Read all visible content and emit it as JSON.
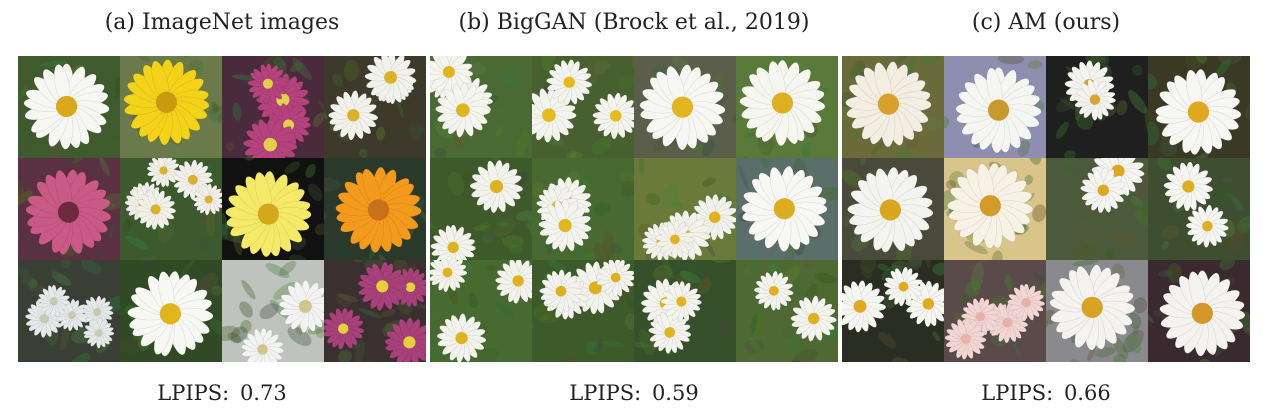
{
  "panels": [
    {
      "title": "(a) ImageNet images",
      "metric_label": "LPIPS:",
      "metric_value": "0.73",
      "images": [
        {
          "flower": "white-daisy",
          "bg": "#3f5a2c",
          "petal": "#f6f6f2",
          "center": "#d8a81e",
          "count": 1
        },
        {
          "flower": "yellow-daisy",
          "bg": "#6b7a4a",
          "petal": "#f3d21a",
          "center": "#c99a10",
          "count": 1
        },
        {
          "flower": "magenta-chrysanthemum",
          "bg": "#4a2b3c",
          "petal": "#b4427d",
          "center": "#e2d24a",
          "count": 4
        },
        {
          "flower": "white-daisy",
          "bg": "#3d3a2c",
          "petal": "#f2f2ec",
          "center": "#d9b22a",
          "count": 3
        },
        {
          "flower": "pink-gerbera",
          "bg": "#5a3140",
          "petal": "#c95a85",
          "center": "#6b2b3c",
          "count": 1
        },
        {
          "flower": "white-daisy",
          "bg": "#3c5a2e",
          "petal": "#f1f1ea",
          "center": "#d9b22a",
          "count": 6
        },
        {
          "flower": "yellow-daisy",
          "bg": "#111111",
          "petal": "#f5ea68",
          "center": "#d4a81a",
          "count": 1
        },
        {
          "flower": "orange-gerbera",
          "bg": "#2a3a2a",
          "petal": "#f39a1c",
          "center": "#c8701a",
          "count": 1
        },
        {
          "flower": "white-aster",
          "bg": "#3a3f36",
          "petal": "#e6e9ea",
          "center": "#c9c9b2",
          "count": 5
        },
        {
          "flower": "white-daisy",
          "bg": "#2f4a24",
          "petal": "#f7f7f3",
          "center": "#e0b51c",
          "count": 1
        },
        {
          "flower": "white-daisy-grey",
          "bg": "#bfc3bd",
          "petal": "#f3f3f3",
          "center": "#cfc78a",
          "count": 2
        },
        {
          "flower": "magenta-daisy",
          "bg": "#3a3030",
          "petal": "#a8407a",
          "center": "#e6cf3a",
          "count": 4
        }
      ]
    },
    {
      "title": "(b) BigGAN (Brock et al., 2019)",
      "metric_label": "LPIPS:",
      "metric_value": "0.59",
      "images": [
        {
          "flower": "white-daisy",
          "bg": "#4a6a34",
          "petal": "#f5f5ef",
          "center": "#e0b41e",
          "count": 4
        },
        {
          "flower": "white-daisy",
          "bg": "#48602f",
          "petal": "#f4f4ee",
          "center": "#e5bb1c",
          "count": 3
        },
        {
          "flower": "white-daisy",
          "bg": "#5a5e4a",
          "petal": "#f6f6f3",
          "center": "#e2b420",
          "count": 1
        },
        {
          "flower": "white-daisy",
          "bg": "#5a7a3a",
          "petal": "#f6f6f0",
          "center": "#dcb01f",
          "count": 1
        },
        {
          "flower": "white-daisy",
          "bg": "#3f5a2a",
          "petal": "#f3f3ed",
          "center": "#deb21e",
          "count": 2
        },
        {
          "flower": "white-daisy",
          "bg": "#486a30",
          "petal": "#f4f4ee",
          "center": "#e1b61c",
          "count": 3
        },
        {
          "flower": "white-daisy",
          "bg": "#6a7a3a",
          "petal": "#f2f2ea",
          "center": "#dfb21e",
          "count": 4
        },
        {
          "flower": "white-daisy",
          "bg": "#5a6e6a",
          "petal": "#f7f7f4",
          "center": "#dcae1f",
          "count": 1
        },
        {
          "flower": "white-daisy",
          "bg": "#466a2f",
          "petal": "#f3f3ee",
          "center": "#e0b21d",
          "count": 3
        },
        {
          "flower": "white-daisy",
          "bg": "#3d5a2a",
          "petal": "#f3f3ed",
          "center": "#ddb01e",
          "count": 4
        },
        {
          "flower": "white-daisy",
          "bg": "#35502a",
          "petal": "#f4f4ee",
          "center": "#e0b41c",
          "count": 3
        },
        {
          "flower": "white-daisy",
          "bg": "#4e6a32",
          "petal": "#f4f4ee",
          "center": "#deb21e",
          "count": 2
        }
      ]
    },
    {
      "title": "(c) AM (ours)",
      "metric_label": "LPIPS:",
      "metric_value": "0.66",
      "images": [
        {
          "flower": "white-daisy",
          "bg": "#6a6a3a",
          "petal": "#f3ede2",
          "center": "#d8a02a",
          "count": 1
        },
        {
          "flower": "white-daisy",
          "bg": "#8e8fb0",
          "petal": "#f5f5f1",
          "center": "#c89a2a",
          "count": 1
        },
        {
          "flower": "white-daisy",
          "bg": "#1f1f1f",
          "petal": "#f3f3ef",
          "center": "#d9a42a",
          "count": 2
        },
        {
          "flower": "white-daisy",
          "bg": "#3a3a24",
          "petal": "#f6f6f2",
          "center": "#e0a81e",
          "count": 1
        },
        {
          "flower": "white-daisy",
          "bg": "#4a4a3c",
          "petal": "#f3f3ef",
          "center": "#d9a620",
          "count": 1
        },
        {
          "flower": "white-daisy",
          "bg": "#d9c58a",
          "petal": "#f7f2e6",
          "center": "#d49a2a",
          "count": 1
        },
        {
          "flower": "white-daisy",
          "bg": "#4a5a3a",
          "petal": "#f4f4f0",
          "center": "#dca820",
          "count": 2
        },
        {
          "flower": "white-daisy",
          "bg": "#3e4e30",
          "petal": "#f5f5f1",
          "center": "#dcae20",
          "count": 2
        },
        {
          "flower": "white-daisy",
          "bg": "#2a2e22",
          "petal": "#f5f5f1",
          "center": "#e0aa1e",
          "count": 3
        },
        {
          "flower": "pink-white-clusters",
          "bg": "#5a4a4a",
          "petal": "#f2d6d4",
          "center": "#e8b2a8",
          "count": 5
        },
        {
          "flower": "white-daisy",
          "bg": "#8a8a8e",
          "petal": "#f5f3ef",
          "center": "#d8a222",
          "count": 1
        },
        {
          "flower": "white-daisy",
          "bg": "#3a2a30",
          "petal": "#f5f3f0",
          "center": "#d4982a",
          "count": 1
        }
      ]
    }
  ]
}
